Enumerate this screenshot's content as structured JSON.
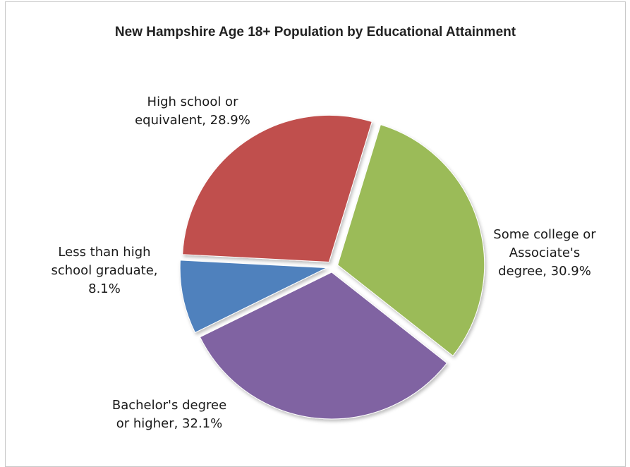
{
  "chart_data": {
    "type": "pie",
    "title": "New Hampshire Age 18+ Population by Educational Attainment",
    "slices": [
      {
        "label_lines": [
          "Some college or",
          "Associate's",
          "degree, 30.9%"
        ],
        "value": 30.9,
        "color": "#9bbb59"
      },
      {
        "label_lines": [
          "Bachelor's degree",
          "or higher, 32.1%"
        ],
        "value": 32.1,
        "color": "#8064a2"
      },
      {
        "label_lines": [
          "Less than high",
          "school graduate,",
          "8.1%"
        ],
        "value": 8.1,
        "color": "#4f81bd"
      },
      {
        "label_lines": [
          "High school or",
          "equivalent, 28.9%"
        ],
        "value": 28.9,
        "color": "#c0504d"
      }
    ]
  }
}
